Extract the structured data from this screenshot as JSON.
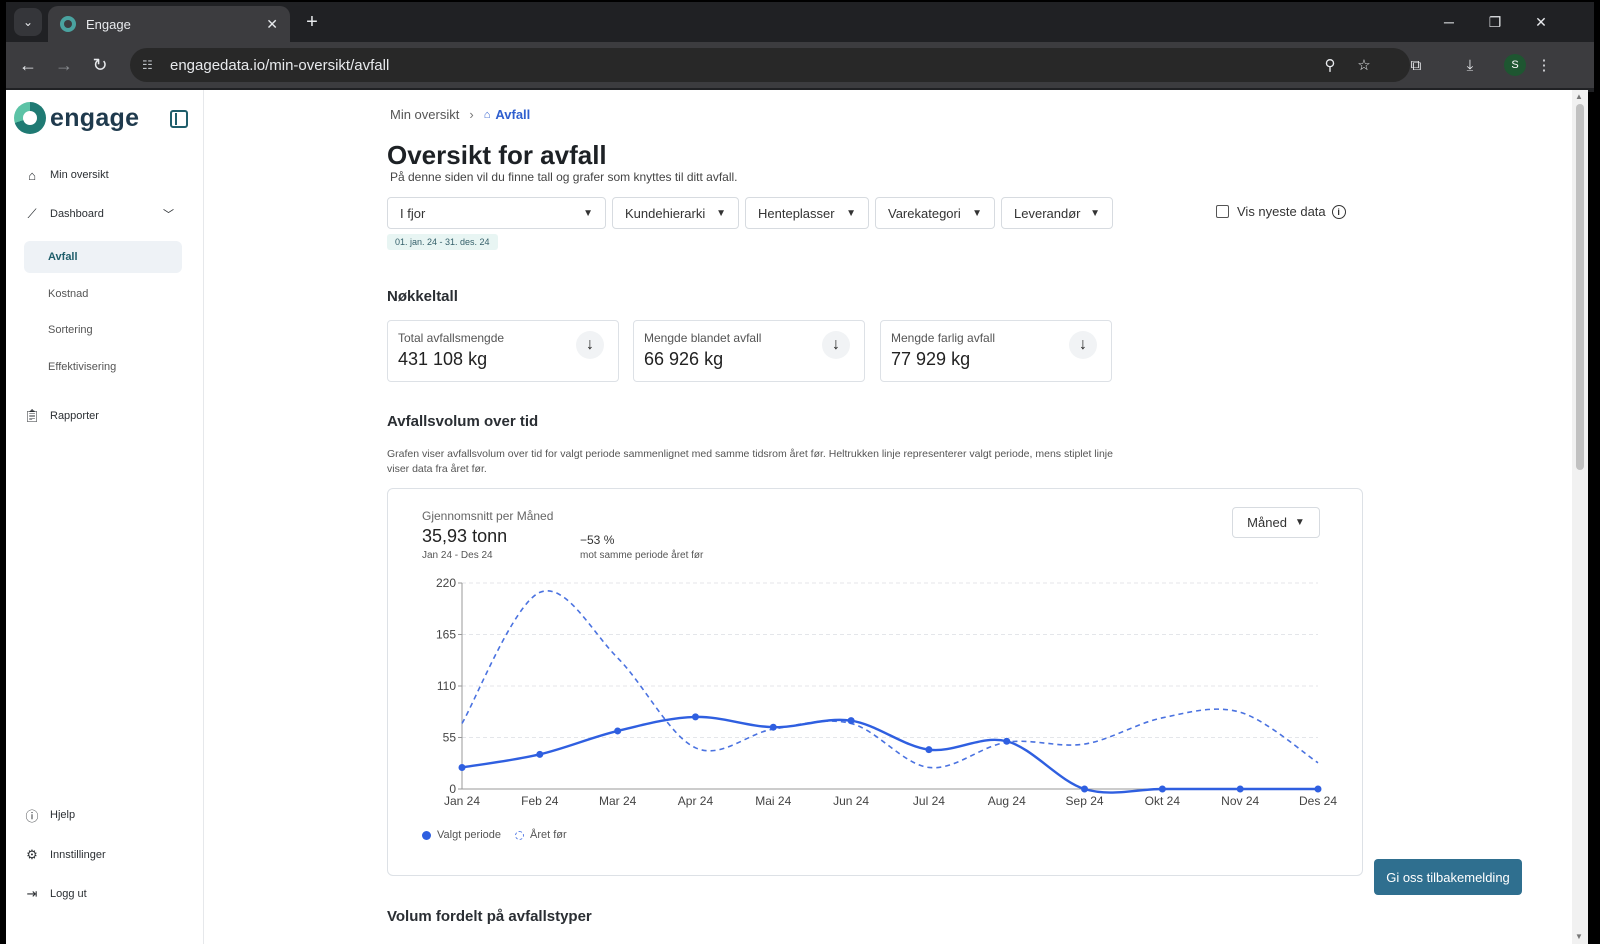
{
  "browser": {
    "tab_title": "Engage",
    "url": "engagedata.io/min-oversikt/avfall",
    "profile_initial": "S"
  },
  "sidebar": {
    "logo_text": "engage",
    "items": [
      {
        "label": "Min oversikt",
        "icon": "home-icon"
      },
      {
        "label": "Dashboard",
        "icon": "chart-line-icon"
      },
      {
        "label": "Rapporter",
        "icon": "clipboard-icon"
      }
    ],
    "dashboard_children": [
      "Avfall",
      "Kostnad",
      "Sortering",
      "Effektivisering"
    ],
    "bottom_items": [
      {
        "label": "Hjelp",
        "icon": "help-circle-icon"
      },
      {
        "label": "Innstillinger",
        "icon": "gear-icon"
      },
      {
        "label": "Logg ut",
        "icon": "logout-icon"
      }
    ]
  },
  "breadcrumb": {
    "root": "Min oversikt",
    "current": "Avfall"
  },
  "header": {
    "title": "Oversikt for avfall",
    "subtitle": "På denne siden vil du finne tall og grafer som knyttes til ditt avfall."
  },
  "filters": {
    "period": "I fjor",
    "hierarchy": "Kundehierarki",
    "locations": "Henteplasser",
    "category": "Varekategori",
    "supplier": "Leverandør",
    "date_range": "01. jan. 24 - 31. des. 24",
    "latest_data_label": "Vis nyeste data",
    "latest_data_checked": false
  },
  "key_figures": {
    "heading": "Nøkkeltall",
    "cards": [
      {
        "label": "Total avfallsmengde",
        "value": "431 108",
        "unit": "kg"
      },
      {
        "label": "Mengde blandet avfall",
        "value": "66 926",
        "unit": "kg"
      },
      {
        "label": "Mengde farlig avfall",
        "value": "77 929",
        "unit": "kg"
      }
    ]
  },
  "volume_section": {
    "heading": "Avfallsvolum over tid",
    "description": "Grafen viser avfallsvolum over tid for valgt periode sammenlignet med samme tidsrom året før. Heltrukken linje representerer valgt periode, mens stiplet linje viser data fra året før.",
    "avg_label": "Gjennomsnitt per Måned",
    "avg_value": "35,93",
    "avg_unit": "tonn",
    "avg_range": "Jan 24 - Des 24",
    "change_pct": "−53 %",
    "change_label": "mot samme periode året før",
    "granularity": "Måned"
  },
  "chart_data": {
    "type": "line",
    "categories": [
      "Jan 24",
      "Feb 24",
      "Mar 24",
      "Apr 24",
      "Mai 24",
      "Jun 24",
      "Jul 24",
      "Aug 24",
      "Sep 24",
      "Okt 24",
      "Nov 24",
      "Des 24"
    ],
    "y_ticks": [
      0,
      55,
      110,
      165,
      220
    ],
    "ylim": [
      0,
      220
    ],
    "series": [
      {
        "name": "Valgt periode",
        "style": "solid",
        "color": "#2f5fe0",
        "values": [
          23,
          37,
          62,
          77,
          66,
          73,
          42,
          51,
          0,
          0,
          0,
          0
        ]
      },
      {
        "name": "Året før",
        "style": "dashed",
        "color": "#4a72e0",
        "values": [
          70,
          210,
          140,
          44,
          64,
          70,
          23,
          50,
          48,
          76,
          82,
          28
        ]
      }
    ],
    "grid": true,
    "legend_position": "bottom-left"
  },
  "next_section_heading": "Volum fordelt på avfallstyper",
  "feedback_button": "Gi oss tilbakemelding"
}
